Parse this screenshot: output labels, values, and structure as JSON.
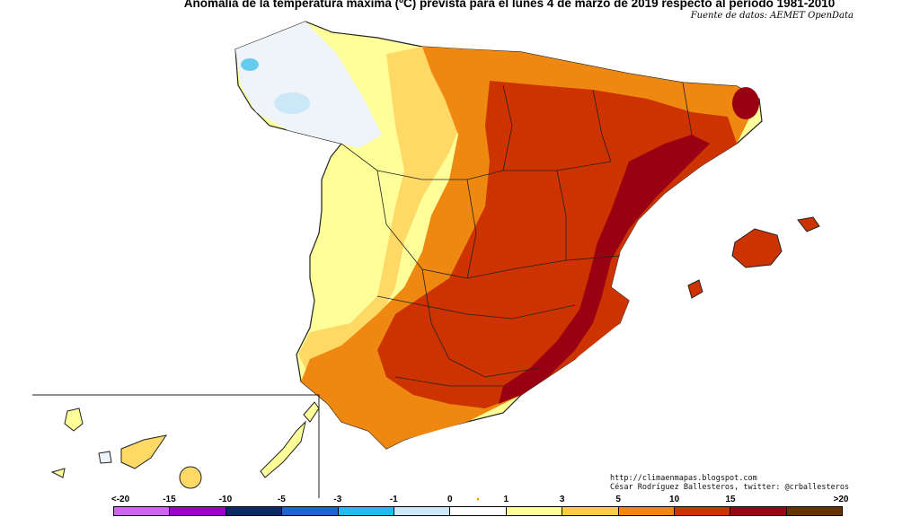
{
  "title": "Anomalía de la temperatura máxima (ºC) prevista para el lunes 4 de marzo de 2019 respecto al periodo 1981-2010",
  "source": "Fuente de datos: AEMET OpenData",
  "credits": {
    "url": "http://climaenmapas.blogspot.com",
    "author": "César Rodríguez Ballesteros, twitter: @crballesteros"
  },
  "legend": {
    "labels": [
      "<-20",
      "-15",
      "-10",
      "-5",
      "-3",
      "-1",
      "0",
      "1",
      "3",
      "5",
      "10",
      "15",
      ">20"
    ],
    "colors": [
      "#cc66ee",
      "#9900cc",
      "#0a2a66",
      "#1f66cc",
      "#22bbee",
      "#cce8f8",
      "#ffffff",
      "#ffff99",
      "#ffcc44",
      "#ee8811",
      "#cc3300",
      "#990011",
      "#663300"
    ],
    "marker_color": "#ff8800"
  },
  "map_colors": {
    "sea": "#ffffff",
    "near_zero": "#eef4fa",
    "cool_light": "#cce8f8",
    "cool": "#66ccee",
    "warm_1": "#ffff99",
    "warm_3": "#ffd966",
    "warm_5": "#ee8811",
    "warm_10": "#cc3300",
    "warm_15": "#990011",
    "border": "#222222"
  }
}
